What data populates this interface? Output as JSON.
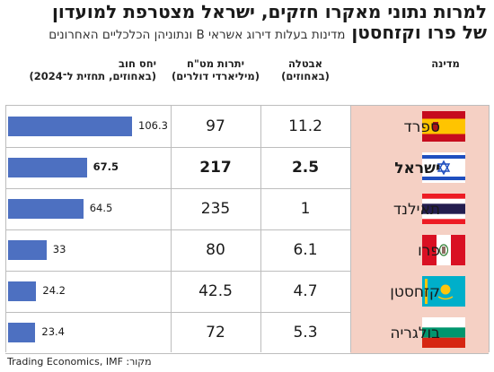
{
  "title": {
    "line1": "למרות נתוני מאקרו חזקים, ישראל מצטרפת למועדון",
    "line2_bold": "של פרו וקזחסטן",
    "line2_sub": "מדינות בעלות דירוג אשראי B ונתוניהן הכלכליים האחרונים"
  },
  "headers": {
    "country": "מדינה",
    "unemployment": [
      "אבטלה",
      "(באחוזים)"
    ],
    "reserves": [
      "יתרות מט\"ח",
      "(מיליארדי דולרים)"
    ],
    "debt": [
      "יחס חוב",
      "(באחוזים, תחזית ל־2024)"
    ]
  },
  "colors": {
    "bar": "#4d70c1",
    "highlight": "#f5d0c4",
    "grid": "#bdbdbd"
  },
  "chart_data": {
    "type": "table",
    "columns": [
      "מדינה",
      "אבטלה (באחוזים)",
      "יתרות מט\"ח (מיליארדי דולרים)",
      "יחס חוב (באחוזים, תחזית ל־2024)"
    ],
    "debt_axis_max": 110,
    "rows": [
      {
        "country": "ספרד",
        "flag": "spain-flag",
        "unemployment": "11.2",
        "reserves": "97",
        "debt": 106.3,
        "debt_label": "106.3",
        "bold": false
      },
      {
        "country": "ישראל",
        "flag": "israel-flag",
        "unemployment": "2.5",
        "reserves": "217",
        "debt": 67.5,
        "debt_label": "67.5",
        "bold": true
      },
      {
        "country": "תאילנד",
        "flag": "thailand-flag",
        "unemployment": "1",
        "reserves": "235",
        "debt": 64.5,
        "debt_label": "64.5",
        "bold": false
      },
      {
        "country": "פרו",
        "flag": "peru-flag",
        "unemployment": "6.1",
        "reserves": "80",
        "debt": 33,
        "debt_label": "33",
        "bold": false
      },
      {
        "country": "קזחסטן",
        "flag": "kazakhstan-flag",
        "unemployment": "4.7",
        "reserves": "42.5",
        "debt": 24.2,
        "debt_label": "24.2",
        "bold": false
      },
      {
        "country": "בולגריה",
        "flag": "bulgaria-flag",
        "unemployment": "5.3",
        "reserves": "72",
        "debt": 23.4,
        "debt_label": "23.4",
        "bold": false
      }
    ]
  },
  "source": "מקור: Trading Economics, IMF"
}
